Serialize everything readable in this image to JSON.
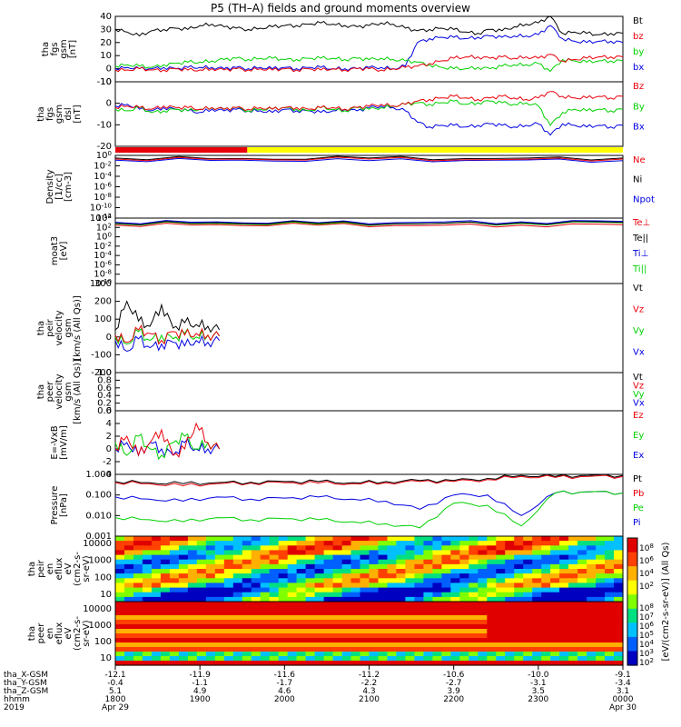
{
  "title": "P5 (TH–A) fields and ground moments overview",
  "colors": {
    "black": "#000000",
    "red": "#e8000b",
    "green": "#00d000",
    "blue": "#0000e0",
    "yellow": "#ffff00"
  },
  "chart_data": [
    {
      "type": "line",
      "ylabel_lines": [
        "tha",
        "fgs",
        "gsm",
        "[nT]"
      ],
      "ylim": [
        -10,
        40
      ],
      "yticks": [
        "40",
        "30",
        "20",
        "10",
        "0",
        "-10"
      ],
      "series": [
        {
          "name": "Bt",
          "color": "black",
          "values": [
            30,
            28,
            25,
            29,
            30,
            31,
            30,
            33,
            34,
            32,
            31,
            30,
            31,
            32,
            33,
            33,
            34,
            35,
            34,
            33,
            32,
            33,
            35,
            34,
            31,
            29,
            30,
            31,
            30,
            28,
            27,
            30,
            29,
            32,
            34,
            35,
            40,
            27,
            28,
            27,
            26,
            27,
            27
          ]
        },
        {
          "name": "bz",
          "color": "red",
          "values": [
            -1,
            -1,
            0,
            -1,
            -1,
            0,
            -1,
            -1,
            0,
            -1,
            0,
            -1,
            0,
            -1,
            0,
            -1,
            0,
            -1,
            0,
            -1,
            0,
            0,
            -1,
            0,
            1,
            2,
            4,
            6,
            8,
            9,
            9,
            8,
            9,
            8,
            9,
            8,
            11,
            6,
            7,
            8,
            9,
            9,
            9
          ]
        },
        {
          "name": "by",
          "color": "green",
          "values": [
            2,
            3,
            2,
            1,
            3,
            4,
            5,
            5,
            6,
            7,
            8,
            7,
            8,
            8,
            7,
            7,
            8,
            8,
            8,
            7,
            8,
            7,
            8,
            7,
            6,
            5,
            3,
            1,
            0,
            0,
            1,
            0,
            2,
            3,
            3,
            4,
            -2,
            7,
            6,
            5,
            6,
            6,
            6
          ]
        },
        {
          "name": "bx",
          "color": "blue",
          "values": [
            0,
            1,
            0,
            0,
            1,
            0,
            1,
            1,
            1,
            0,
            1,
            0,
            1,
            0,
            1,
            0,
            1,
            1,
            0,
            0,
            0,
            1,
            1,
            0,
            2,
            20,
            23,
            24,
            24,
            23,
            24,
            25,
            24,
            25,
            25,
            26,
            33,
            23,
            21,
            20,
            21,
            21,
            20
          ]
        }
      ]
    },
    {
      "type": "line",
      "ylabel_lines": [
        "tha",
        "fgs",
        "gsm",
        "dsl",
        "[nT]"
      ],
      "ylim": [
        -25,
        15
      ],
      "yticks": [
        "10",
        "0",
        "-10",
        "-20"
      ],
      "series": [
        {
          "name": "Bz",
          "color": "red",
          "values": [
            -1,
            0,
            -1,
            -2,
            0,
            -1,
            -1,
            -2,
            -1,
            -2,
            -1,
            -2,
            -1,
            -2,
            -1,
            -1,
            -2,
            -1,
            -1,
            -2,
            -1,
            0,
            1,
            0,
            1,
            3,
            4,
            5,
            6,
            5,
            4,
            5,
            6,
            5,
            4,
            5,
            9,
            6,
            5,
            5,
            6,
            5,
            6
          ]
        },
        {
          "name": "By",
          "color": "green",
          "values": [
            -2,
            -3,
            -1,
            -4,
            -3,
            -2,
            -3,
            -2,
            -1,
            -2,
            -1,
            -3,
            -2,
            -2,
            -1,
            -2,
            -3,
            -1,
            -2,
            -3,
            -1,
            -2,
            -1,
            0,
            1,
            2,
            1,
            2,
            3,
            1,
            2,
            3,
            2,
            1,
            2,
            0,
            -12,
            -4,
            -2,
            -3,
            -2,
            -3,
            -2
          ]
        },
        {
          "name": "Bx",
          "color": "blue",
          "values": [
            0,
            1,
            -2,
            -3,
            -1,
            -2,
            -3,
            -4,
            -2,
            -3,
            -2,
            -3,
            -3,
            -4,
            -2,
            -3,
            -3,
            -4,
            -3,
            -2,
            -3,
            -1,
            0,
            -1,
            -3,
            -10,
            -13,
            -12,
            -12,
            -13,
            -12,
            -11,
            -12,
            -13,
            -12,
            -11,
            -18,
            -11,
            -12,
            -13,
            -12,
            -13,
            -12
          ]
        }
      ]
    },
    {
      "type": "line",
      "ylabel_lines": [
        "Density",
        "[1/cc]",
        "[cm-3]"
      ],
      "ylim": [
        -12,
        0
      ],
      "ylog": true,
      "ytick_exps": [
        0,
        -2,
        -4,
        -6,
        -8,
        -10,
        -12
      ],
      "series": [
        {
          "name": "Ne",
          "color": "red",
          "values": [
            -0.7,
            -0.7,
            -0.7,
            -0.8,
            -0.7
          ]
        },
        {
          "name": "Ni",
          "color": "black",
          "values": [
            -0.5,
            -0.6,
            -0.5,
            -0.6,
            -0.5
          ]
        },
        {
          "name": "Npot",
          "color": "blue",
          "values": [
            -0.9,
            -0.9,
            -1.0,
            -0.9,
            -1.0
          ]
        }
      ]
    },
    {
      "type": "line",
      "ylabel_lines": [
        "moat3",
        "[eV]"
      ],
      "ylim": [
        -10,
        4
      ],
      "ylog": true,
      "ytick_exps": [
        4,
        2,
        0,
        -2,
        -4,
        -6,
        -8,
        -10
      ],
      "series": [
        {
          "name": "Te⊥",
          "color": "red",
          "values": [
            2.5,
            2.6,
            2.5,
            2.4,
            2.5,
            2.6
          ]
        },
        {
          "name": "Te||",
          "color": "black",
          "values": [
            2.9,
            3.0,
            2.9,
            2.8,
            3.0,
            3.1
          ]
        },
        {
          "name": "Ti⊥",
          "color": "blue",
          "values": [
            3.1,
            3.2,
            3.0,
            3.1,
            3.2,
            3.3
          ]
        },
        {
          "name": "Ti||",
          "color": "green",
          "values": [
            2.8,
            2.9,
            2.7,
            2.8,
            2.9,
            3.0
          ]
        }
      ]
    },
    {
      "type": "line",
      "ylabel_lines": [
        "tha",
        "peir",
        "velocity",
        "gsm",
        "[km/s (All Qs)]"
      ],
      "ylim": [
        -200,
        300
      ],
      "yticks": [
        "300",
        "200",
        "100",
        "0",
        "-100",
        "-200"
      ],
      "series": [
        {
          "name": "Vt",
          "color": "black",
          "values": [
            40,
            200,
            90,
            60,
            180,
            50,
            80,
            70,
            60,
            40
          ]
        },
        {
          "name": "Vz",
          "color": "red",
          "values": [
            10,
            -30,
            40,
            20,
            -20,
            30,
            10,
            20,
            10,
            5
          ]
        },
        {
          "name": "Vy",
          "color": "green",
          "values": [
            0,
            -40,
            30,
            -20,
            10,
            -10,
            20,
            0,
            10,
            5
          ]
        },
        {
          "name": "Vx",
          "color": "blue",
          "values": [
            -20,
            -80,
            -10,
            -60,
            -40,
            -30,
            -50,
            -20,
            -30,
            -20
          ]
        }
      ]
    },
    {
      "type": "line",
      "ylabel_lines": [
        "tha",
        "peer",
        "velocity",
        "gsm",
        "[km/s (All Qs)]"
      ],
      "ylim": [
        0,
        1
      ],
      "yticks": [
        "1.0",
        "0.8",
        "0.6",
        "0.4",
        "0.2",
        "0.0"
      ],
      "series": [
        {
          "name": "Vt",
          "color": "black",
          "values": []
        },
        {
          "name": "Vz",
          "color": "red",
          "values": []
        },
        {
          "name": "Vy",
          "color": "green",
          "values": []
        },
        {
          "name": "Vx",
          "color": "blue",
          "values": []
        }
      ]
    },
    {
      "type": "line",
      "ylabel_lines": [
        "E=-VxB",
        "[mV/m]"
      ],
      "ylim": [
        -4,
        6
      ],
      "yticks": [
        "6",
        "4",
        "2",
        "0",
        "-2",
        "-4"
      ],
      "series": [
        {
          "name": "Ez",
          "color": "red",
          "values": [
            0,
            2,
            -1,
            1,
            3,
            -1,
            0,
            4,
            1,
            0
          ]
        },
        {
          "name": "Ey",
          "color": "green",
          "values": [
            1,
            -1,
            2,
            0,
            -1,
            1,
            2,
            0,
            1,
            0
          ]
        },
        {
          "name": "Ex",
          "color": "blue",
          "values": [
            0,
            1,
            -1,
            1,
            0,
            -1,
            1,
            0,
            0,
            0
          ]
        }
      ]
    },
    {
      "type": "line",
      "ylabel_lines": [
        "Pressure",
        "[nPa]"
      ],
      "ylim": [
        -3,
        0
      ],
      "ylog": true,
      "yticks": [
        "1.000",
        "0.100",
        "0.010",
        "0.001"
      ],
      "series": [
        {
          "name": "Pt",
          "color": "black",
          "values": [
            -0.35,
            -0.4,
            -0.45,
            -0.4,
            -0.38,
            -0.35,
            -0.35,
            -0.4,
            -0.35,
            -0.3,
            -0.3,
            -0.2,
            -0.05,
            -0.1,
            -0.05,
            -0.05
          ]
        },
        {
          "name": "Pb",
          "color": "red",
          "values": [
            -0.4,
            -0.45,
            -0.55,
            -0.45,
            -0.42,
            -0.4,
            -0.42,
            -0.45,
            -0.4,
            -0.35,
            -0.35,
            -0.25,
            -0.1,
            -0.15,
            -0.1,
            -0.1
          ]
        },
        {
          "name": "Pe",
          "color": "green",
          "values": [
            -2.1,
            -2.2,
            -2.3,
            -2.1,
            -2.2,
            -2.15,
            -2.2,
            -2.3,
            -2.4,
            -2.6,
            -1.4,
            -1.5,
            -2.5,
            -0.9,
            -0.85,
            -0.9
          ]
        },
        {
          "name": "Pi",
          "color": "blue",
          "values": [
            -1.1,
            -1.2,
            -1.3,
            -1.1,
            -1.2,
            -1.15,
            -1.1,
            -1.2,
            -1.3,
            -1.7,
            -1.0,
            -1.0,
            -2.0,
            -0.9,
            -0.85,
            -0.9
          ]
        }
      ]
    },
    {
      "type": "heatmap",
      "ylabel_lines": [
        "tha",
        "peir",
        "en",
        "eflux",
        "eV",
        "(cm2-s-",
        "sr-eV)"
      ],
      "yticks": [
        "10000",
        "1000",
        "100",
        "10"
      ]
    },
    {
      "type": "heatmap",
      "ylabel_lines": [
        "tha",
        "peer",
        "en",
        "eflux",
        "eV",
        "(cm2-s-",
        "sr-eV)"
      ],
      "yticks": [
        "10000",
        "1000",
        "100",
        "10"
      ]
    }
  ],
  "legends": [
    [
      {
        "label": "Bt",
        "color": "black"
      },
      {
        "label": "bz",
        "color": "red"
      },
      {
        "label": "by",
        "color": "green"
      },
      {
        "label": "bx",
        "color": "blue"
      }
    ],
    [
      {
        "label": "Bz",
        "color": "red"
      },
      {
        "label": "By",
        "color": "green"
      },
      {
        "label": "Bx",
        "color": "blue"
      }
    ],
    [
      {
        "label": "Ne",
        "color": "red"
      },
      {
        "label": "Ni",
        "color": "black"
      },
      {
        "label": "Npot",
        "color": "blue"
      }
    ],
    [
      {
        "label": "Te⊥",
        "color": "red"
      },
      {
        "label": "Te||",
        "color": "black"
      },
      {
        "label": "Ti⊥",
        "color": "blue"
      },
      {
        "label": "Ti||",
        "color": "green"
      }
    ],
    [
      {
        "label": "Vt",
        "color": "black"
      },
      {
        "label": "Vz",
        "color": "red"
      },
      {
        "label": "Vy",
        "color": "green"
      },
      {
        "label": "Vx",
        "color": "blue"
      }
    ],
    [
      {
        "label": "Vt",
        "color": "black"
      },
      {
        "label": "Vz",
        "color": "red"
      },
      {
        "label": "Vy",
        "color": "green"
      },
      {
        "label": "Vx",
        "color": "blue"
      }
    ],
    [
      {
        "label": "Ez",
        "color": "red"
      },
      {
        "label": "Ey",
        "color": "green"
      },
      {
        "label": "Ex",
        "color": "blue"
      }
    ],
    [
      {
        "label": "Pt",
        "color": "black"
      },
      {
        "label": "Pb",
        "color": "red"
      },
      {
        "label": "Pe",
        "color": "green"
      },
      {
        "label": "Pi",
        "color": "blue"
      }
    ]
  ],
  "colorbar": {
    "label": "[eV/(cm2-s-sr-eV)] (All Qs)",
    "ticks_top": [
      "8",
      "6",
      "4",
      "2"
    ],
    "ticks_bottom": [
      "8",
      "7",
      "6",
      "5",
      "4",
      "3",
      "2"
    ]
  },
  "xaxis": {
    "row_labels": [
      "tha_X-GSM",
      "tha_Y-GSM",
      "tha_Z-GSM",
      "hhmm",
      "2019"
    ],
    "ticks": [
      {
        "x_gsm": "-12.1",
        "y_gsm": "-0.4",
        "z_gsm": "5.1",
        "hhmm": "1800",
        "date": "Apr 29"
      },
      {
        "x_gsm": "-11.9",
        "y_gsm": "-1.1",
        "z_gsm": "4.9",
        "hhmm": "1900",
        "date": ""
      },
      {
        "x_gsm": "-11.6",
        "y_gsm": "-1.7",
        "z_gsm": "4.6",
        "hhmm": "2000",
        "date": ""
      },
      {
        "x_gsm": "-11.2",
        "y_gsm": "-2.2",
        "z_gsm": "4.3",
        "hhmm": "2100",
        "date": ""
      },
      {
        "x_gsm": "-10.6",
        "y_gsm": "-2.7",
        "z_gsm": "3.9",
        "hhmm": "2200",
        "date": ""
      },
      {
        "x_gsm": "-10.0",
        "y_gsm": "-3.1",
        "z_gsm": "3.5",
        "hhmm": "2300",
        "date": ""
      },
      {
        "x_gsm": "-9.1",
        "y_gsm": "-3.4",
        "z_gsm": "3.1",
        "hhmm": "0000",
        "date": "Apr 30"
      }
    ]
  },
  "mode_bar": {
    "segments": [
      {
        "color": "red",
        "fraction": 0.26
      },
      {
        "color": "yellow",
        "fraction": 0.74
      }
    ]
  }
}
